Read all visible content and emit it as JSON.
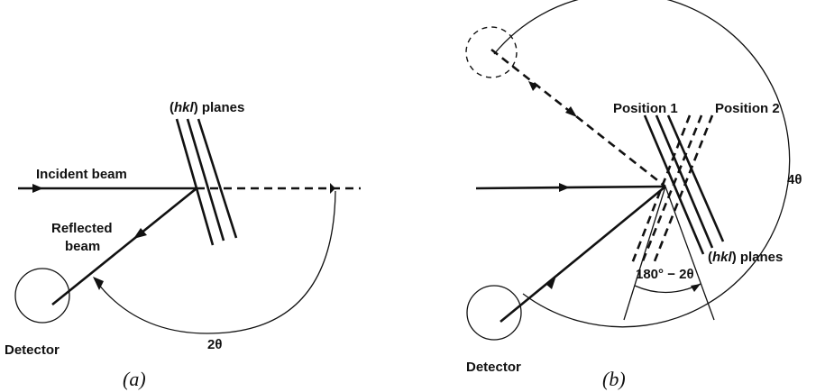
{
  "panel_a": {
    "caption": "(a)",
    "planes_label": {
      "prefix": "(",
      "hkl": "hkl",
      "suffix": ") planes"
    },
    "incident_label": "Incident beam",
    "reflected_label_line1": "Reflected",
    "reflected_label_line2": "beam",
    "detector_label": "Detector",
    "angle_label": "2θ"
  },
  "panel_b": {
    "caption": "(b)",
    "position1_label": "Position 1",
    "position2_label": "Position 2",
    "planes_label": {
      "prefix": "(",
      "hkl": "hkl",
      "suffix": ") planes"
    },
    "detector_label": "Detector",
    "angle_label": "4θ",
    "supplement_label": "180° − 2θ"
  }
}
